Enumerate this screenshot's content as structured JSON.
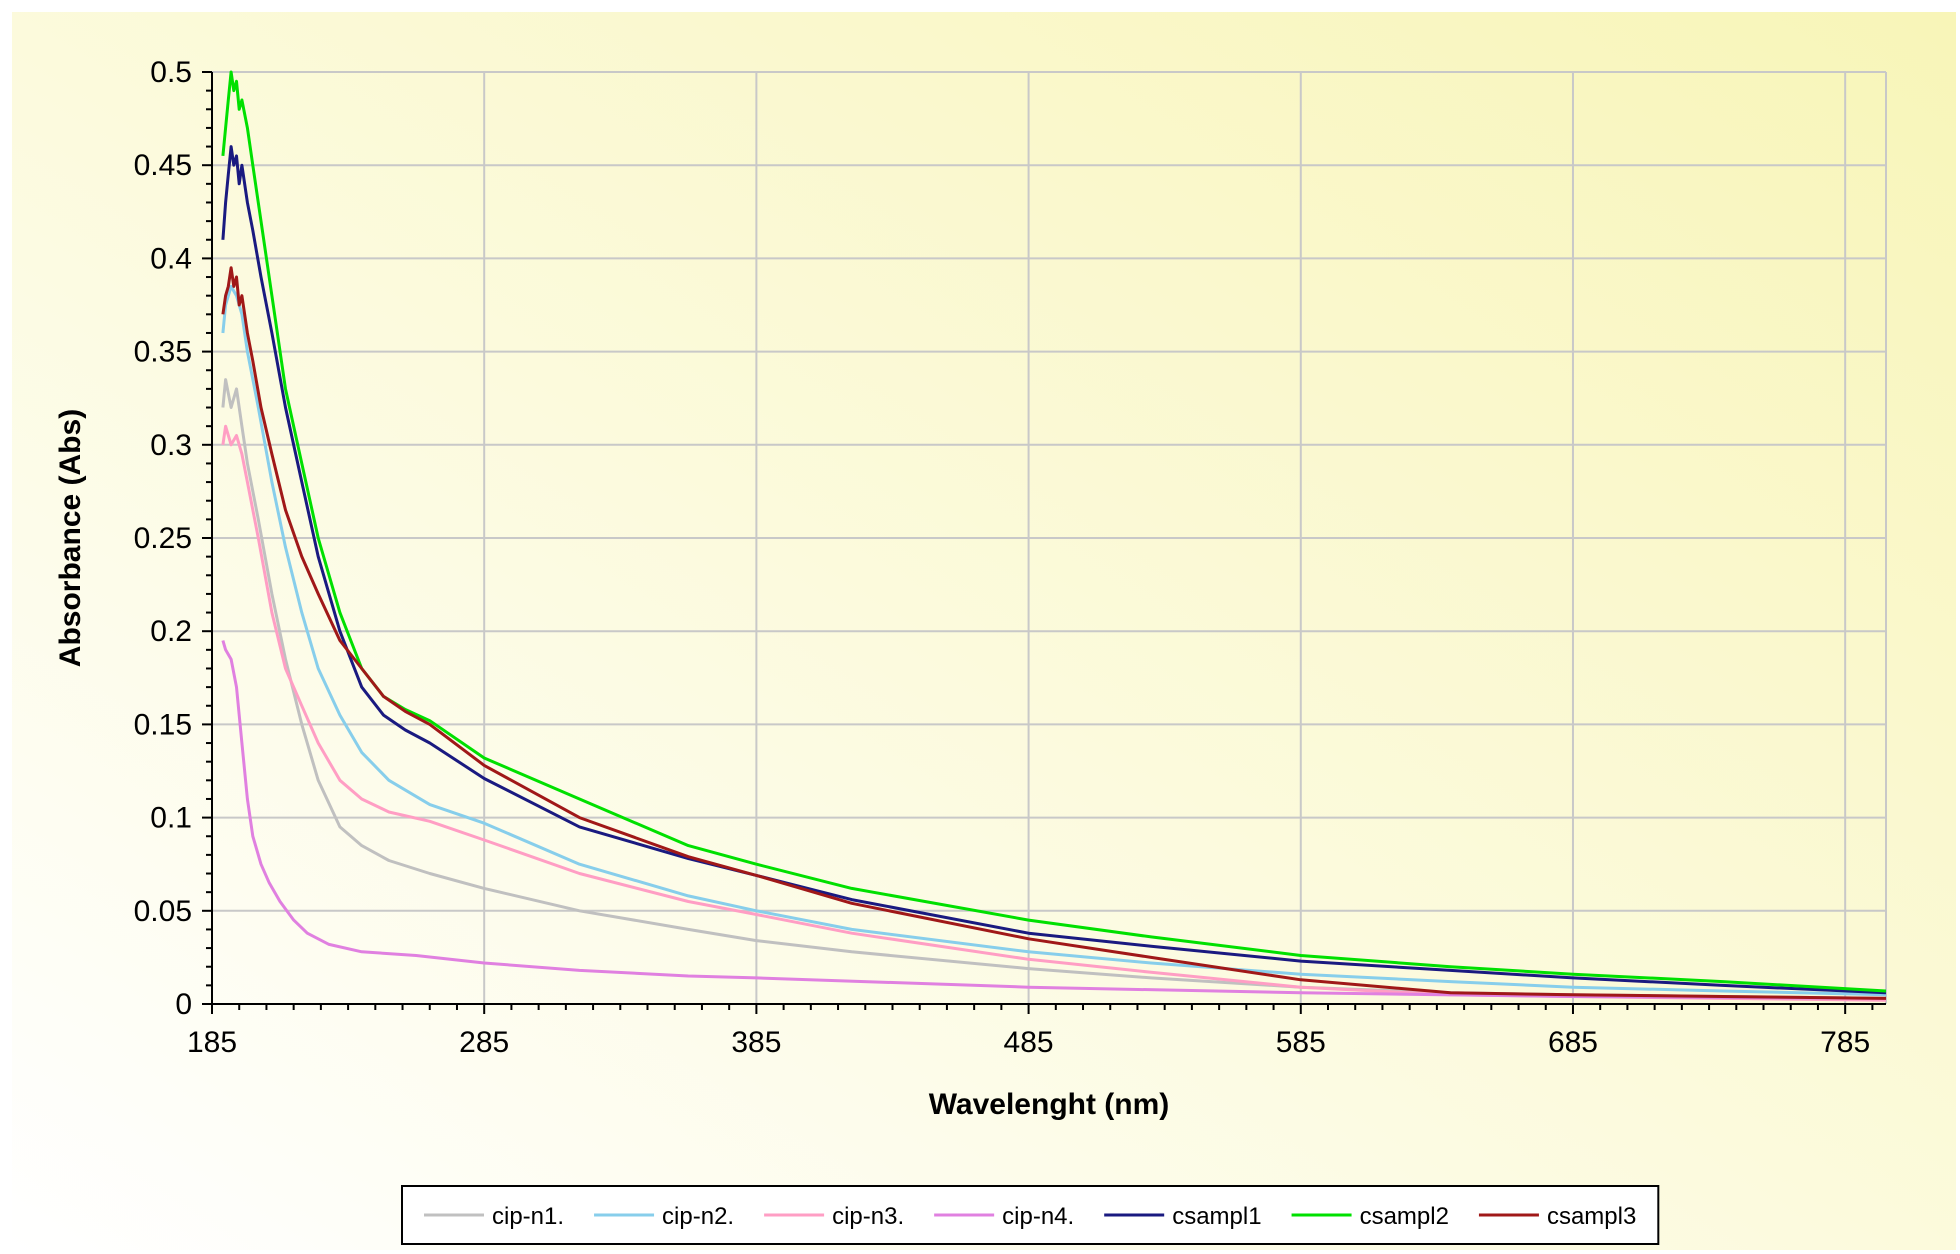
{
  "chart_data": {
    "type": "line",
    "title": "",
    "xlabel": "Wavelenght (nm)",
    "ylabel": "Absorbance (Abs)",
    "xlim": [
      185,
      800
    ],
    "ylim": [
      0,
      0.5
    ],
    "x_ticks": [
      "185",
      "285",
      "385",
      "485",
      "585",
      "685",
      "785"
    ],
    "y_ticks": [
      "0",
      "0.05",
      "0.1",
      "0.15",
      "0.2",
      "0.25",
      "0.3",
      "0.35",
      "0.4",
      "0.45",
      "0.5"
    ],
    "grid": true,
    "legend_position": "bottom",
    "background_gradient": [
      "#ffffff",
      "#f8f5b8"
    ],
    "series": [
      {
        "name": "cip-n1.",
        "color": "#c0c0c0",
        "x": [
          189,
          190,
          192,
          194,
          196,
          198,
          202,
          207,
          212,
          218,
          224,
          232,
          240,
          250,
          265,
          285,
          320,
          360,
          385,
          420,
          485,
          530,
          585,
          640,
          685,
          740,
          800
        ],
        "y": [
          0.32,
          0.335,
          0.32,
          0.33,
          0.31,
          0.29,
          0.26,
          0.22,
          0.185,
          0.15,
          0.12,
          0.095,
          0.085,
          0.077,
          0.07,
          0.062,
          0.05,
          0.04,
          0.034,
          0.028,
          0.019,
          0.014,
          0.009,
          0.006,
          0.005,
          0.004,
          0.003
        ]
      },
      {
        "name": "cip-n2.",
        "color": "#87ceeb",
        "x": [
          189,
          190,
          192,
          194,
          196,
          198,
          202,
          207,
          212,
          218,
          224,
          232,
          240,
          250,
          265,
          285,
          320,
          360,
          385,
          420,
          485,
          530,
          585,
          640,
          685,
          740,
          800
        ],
        "y": [
          0.36,
          0.375,
          0.385,
          0.38,
          0.37,
          0.35,
          0.32,
          0.28,
          0.245,
          0.21,
          0.18,
          0.155,
          0.135,
          0.12,
          0.107,
          0.097,
          0.075,
          0.058,
          0.05,
          0.04,
          0.028,
          0.022,
          0.016,
          0.012,
          0.009,
          0.007,
          0.005
        ]
      },
      {
        "name": "cip-n3.",
        "color": "#ff9ec4",
        "x": [
          189,
          190,
          192,
          194,
          196,
          198,
          202,
          207,
          212,
          218,
          224,
          232,
          240,
          250,
          265,
          285,
          320,
          360,
          385,
          420,
          485,
          530,
          585,
          640,
          685,
          740,
          800
        ],
        "y": [
          0.3,
          0.31,
          0.3,
          0.305,
          0.295,
          0.28,
          0.25,
          0.21,
          0.18,
          0.16,
          0.14,
          0.12,
          0.11,
          0.103,
          0.098,
          0.088,
          0.07,
          0.055,
          0.048,
          0.038,
          0.024,
          0.017,
          0.009,
          0.005,
          0.004,
          0.003,
          0.002
        ]
      },
      {
        "name": "cip-n4.",
        "color": "#e080e0",
        "x": [
          189,
          190,
          192,
          194,
          196,
          198,
          200,
          203,
          206,
          210,
          215,
          220,
          228,
          240,
          260,
          285,
          320,
          360,
          385,
          485,
          585,
          685,
          800
        ],
        "y": [
          0.195,
          0.19,
          0.185,
          0.17,
          0.14,
          0.11,
          0.09,
          0.075,
          0.065,
          0.055,
          0.045,
          0.038,
          0.032,
          0.028,
          0.026,
          0.022,
          0.018,
          0.015,
          0.014,
          0.009,
          0.006,
          0.004,
          0.003
        ]
      },
      {
        "name": "csampl1",
        "color": "#1a1a80",
        "x": [
          189,
          190,
          191,
          192,
          193,
          194,
          195,
          196,
          198,
          200,
          203,
          207,
          212,
          218,
          224,
          232,
          240,
          248,
          256,
          265,
          285,
          320,
          360,
          385,
          420,
          485,
          530,
          585,
          640,
          685,
          740,
          800
        ],
        "y": [
          0.41,
          0.43,
          0.445,
          0.46,
          0.45,
          0.455,
          0.44,
          0.45,
          0.43,
          0.415,
          0.39,
          0.36,
          0.32,
          0.28,
          0.24,
          0.2,
          0.17,
          0.155,
          0.147,
          0.14,
          0.121,
          0.095,
          0.078,
          0.069,
          0.056,
          0.038,
          0.031,
          0.023,
          0.018,
          0.014,
          0.01,
          0.006
        ]
      },
      {
        "name": "csampl2",
        "color": "#00e000",
        "x": [
          189,
          190,
          191,
          192,
          193,
          194,
          195,
          196,
          198,
          200,
          203,
          207,
          212,
          218,
          224,
          232,
          240,
          248,
          256,
          265,
          285,
          320,
          360,
          385,
          420,
          485,
          530,
          585,
          640,
          685,
          740,
          800
        ],
        "y": [
          0.455,
          0.47,
          0.485,
          0.5,
          0.49,
          0.495,
          0.48,
          0.485,
          0.47,
          0.45,
          0.42,
          0.38,
          0.33,
          0.29,
          0.25,
          0.21,
          0.18,
          0.165,
          0.158,
          0.152,
          0.132,
          0.11,
          0.085,
          0.075,
          0.062,
          0.045,
          0.036,
          0.026,
          0.02,
          0.016,
          0.012,
          0.007
        ]
      },
      {
        "name": "csampl3",
        "color": "#a01818",
        "x": [
          189,
          190,
          191,
          192,
          193,
          194,
          195,
          196,
          198,
          200,
          203,
          207,
          212,
          218,
          224,
          232,
          240,
          248,
          256,
          265,
          285,
          320,
          360,
          385,
          420,
          485,
          530,
          585,
          640,
          685,
          740,
          800
        ],
        "y": [
          0.37,
          0.38,
          0.385,
          0.395,
          0.385,
          0.39,
          0.375,
          0.38,
          0.36,
          0.345,
          0.32,
          0.295,
          0.265,
          0.24,
          0.22,
          0.195,
          0.18,
          0.165,
          0.157,
          0.15,
          0.128,
          0.1,
          0.079,
          0.069,
          0.054,
          0.035,
          0.025,
          0.013,
          0.006,
          0.005,
          0.004,
          0.003
        ]
      }
    ]
  }
}
